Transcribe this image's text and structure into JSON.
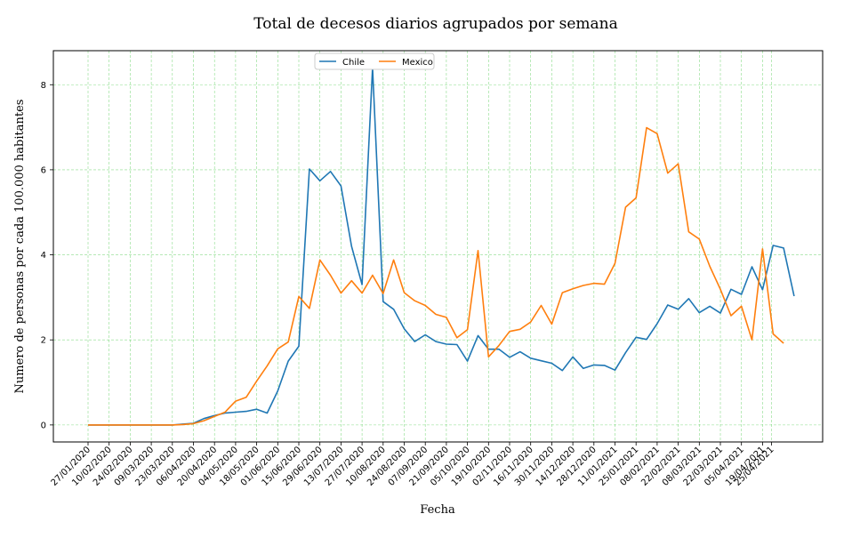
{
  "chart_data": {
    "type": "line",
    "title": "Total de decesos diarios agrupados por semana",
    "xlabel": "Fecha",
    "ylabel": "Numero de personas por cada 100.000 habitantes",
    "ylim": [
      -0.4,
      8.8
    ],
    "yticks": [
      0,
      2,
      4,
      6,
      8
    ],
    "grid": true,
    "legend_position": "top-center",
    "xtick_labels": [
      "27/01/2020",
      "10/02/2020",
      "24/02/2020",
      "09/03/2020",
      "23/03/2020",
      "06/04/2020",
      "20/04/2020",
      "04/05/2020",
      "18/05/2020",
      "01/06/2020",
      "15/06/2020",
      "29/06/2020",
      "13/07/2020",
      "27/07/2020",
      "10/08/2020",
      "24/08/2020",
      "07/09/2020",
      "21/09/2020",
      "05/10/2020",
      "19/10/2020",
      "02/11/2020",
      "16/11/2020",
      "30/11/2020",
      "14/12/2020",
      "28/12/2020",
      "11/01/2021",
      "25/01/2021",
      "08/02/2021",
      "22/02/2021",
      "08/03/2021",
      "22/03/2021",
      "05/04/2021",
      "19/04/2021",
      "25/04/2021"
    ],
    "series": [
      {
        "name": "Chile",
        "color": "#1f77b4",
        "values": [
          0,
          0,
          0,
          0,
          0,
          0,
          0,
          0,
          0,
          0.02,
          0.04,
          0.15,
          0.22,
          0.28,
          0.3,
          0.32,
          0.37,
          0.28,
          0.8,
          1.5,
          1.85,
          6.02,
          5.74,
          5.96,
          5.62,
          4.2,
          3.3,
          8.4,
          2.9,
          2.72,
          2.26,
          1.96,
          2.12,
          1.96,
          1.9,
          1.89,
          1.5,
          2.1,
          1.78,
          1.78,
          1.59,
          1.72,
          1.57,
          1.51,
          1.45,
          1.28,
          1.6,
          1.33,
          1.41,
          1.4,
          1.29,
          1.7,
          2.06,
          2.01,
          2.38,
          2.82,
          2.72,
          2.97,
          2.64,
          2.79,
          2.63,
          3.19,
          3.07,
          3.72,
          3.18,
          4.22,
          4.16,
          3.03
        ]
      },
      {
        "name": "Mexico",
        "color": "#ff7f0e",
        "values": [
          0,
          0,
          0,
          0,
          0,
          0,
          0,
          0,
          0,
          0.01,
          0.03,
          0.1,
          0.2,
          0.3,
          0.56,
          0.65,
          1.03,
          1.39,
          1.79,
          1.95,
          3.02,
          2.74,
          3.88,
          3.52,
          3.1,
          3.39,
          3.1,
          3.52,
          3.09,
          3.88,
          3.11,
          2.92,
          2.81,
          2.6,
          2.53,
          2.05,
          2.24,
          4.1,
          1.6,
          1.87,
          2.2,
          2.25,
          2.42,
          2.81,
          2.37,
          3.11,
          3.2,
          3.28,
          3.33,
          3.31,
          3.8,
          5.12,
          5.34,
          6.99,
          6.85,
          5.92,
          6.14,
          4.54,
          4.37,
          3.73,
          3.19,
          2.57,
          2.79,
          2.0,
          4.14,
          2.14,
          1.92
        ]
      }
    ]
  }
}
